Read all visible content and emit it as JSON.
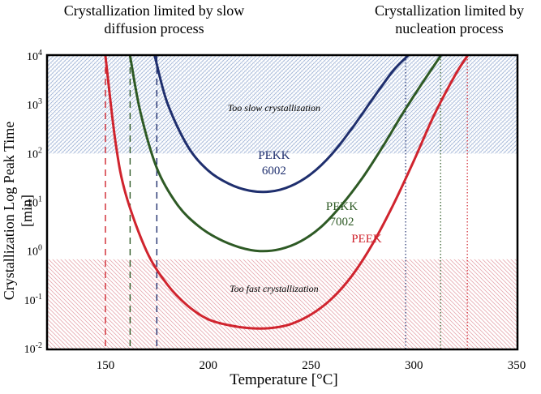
{
  "notes": {
    "left": "Crystallization limited by slow diffusion process",
    "right": "Crystallization limited by nucleation process"
  },
  "chart_data": {
    "type": "line",
    "xlabel": "Temperature [°C]",
    "ylabel": "Crystallization Log Peak Time [min]",
    "xlim": [
      122,
      350
    ],
    "ylim_log10": [
      -2,
      4
    ],
    "x_ticks": [
      150,
      200,
      250,
      300,
      350
    ],
    "x_tick_labels": [
      "150",
      "200",
      "250",
      "300",
      "350"
    ],
    "y_ticks_log10": [
      4,
      3,
      2,
      1,
      0,
      -1,
      -2
    ],
    "y_tick_labels": [
      "10",
      "10",
      "10",
      "10",
      "10",
      "10",
      "10"
    ],
    "y_tick_exponents": [
      "4",
      "3",
      "2",
      "1",
      "0",
      "-1",
      "-2"
    ],
    "regions": [
      {
        "label": "Too slow crystallization",
        "y_from_log10": 2,
        "y_to_log10": 4,
        "color": "#8ea6cf"
      },
      {
        "label": "Too fast crystallization",
        "y_from_log10": -2,
        "y_to_log10": -0.17,
        "color": "#e39aa2"
      }
    ],
    "series": [
      {
        "name": "PEKK 6002",
        "name_lines": [
          "PEKK",
          "6002"
        ],
        "color": "#1f2f6e",
        "x": [
          174,
          180,
          190,
          200,
          210,
          220,
          230,
          240,
          250,
          260,
          270,
          280,
          290,
          297
        ],
        "y_log10": [
          4.0,
          3.05,
          2.15,
          1.65,
          1.38,
          1.24,
          1.22,
          1.33,
          1.58,
          1.98,
          2.52,
          3.12,
          3.7,
          4.0
        ],
        "left_limit": 175,
        "right_limit": 296
      },
      {
        "name": "PEKK 7002",
        "name_lines": [
          "PEKK",
          "7002"
        ],
        "color": "#2e5a25",
        "x": [
          162,
          167,
          175,
          185,
          195,
          205,
          215,
          225,
          235,
          245,
          255,
          265,
          275,
          285,
          295,
          305,
          313
        ],
        "y_log10": [
          4.0,
          2.85,
          1.7,
          0.95,
          0.52,
          0.25,
          0.08,
          0.0,
          0.04,
          0.2,
          0.5,
          0.95,
          1.5,
          2.15,
          2.85,
          3.5,
          4.0
        ],
        "left_limit": 162,
        "right_limit": 313
      },
      {
        "name": "PEEK",
        "name_lines": [
          "PEEK"
        ],
        "color": "#d0242e",
        "x": [
          150,
          155,
          160,
          170,
          180,
          190,
          200,
          210,
          220,
          230,
          240,
          250,
          260,
          270,
          280,
          290,
          300,
          310,
          320,
          326
        ],
        "y_log10": [
          4.0,
          2.2,
          1.15,
          0.0,
          -0.68,
          -1.12,
          -1.4,
          -1.52,
          -1.58,
          -1.58,
          -1.5,
          -1.3,
          -0.98,
          -0.5,
          0.15,
          0.95,
          1.85,
          2.8,
          3.6,
          4.0
        ],
        "left_limit": 150,
        "right_limit": 326
      }
    ]
  }
}
